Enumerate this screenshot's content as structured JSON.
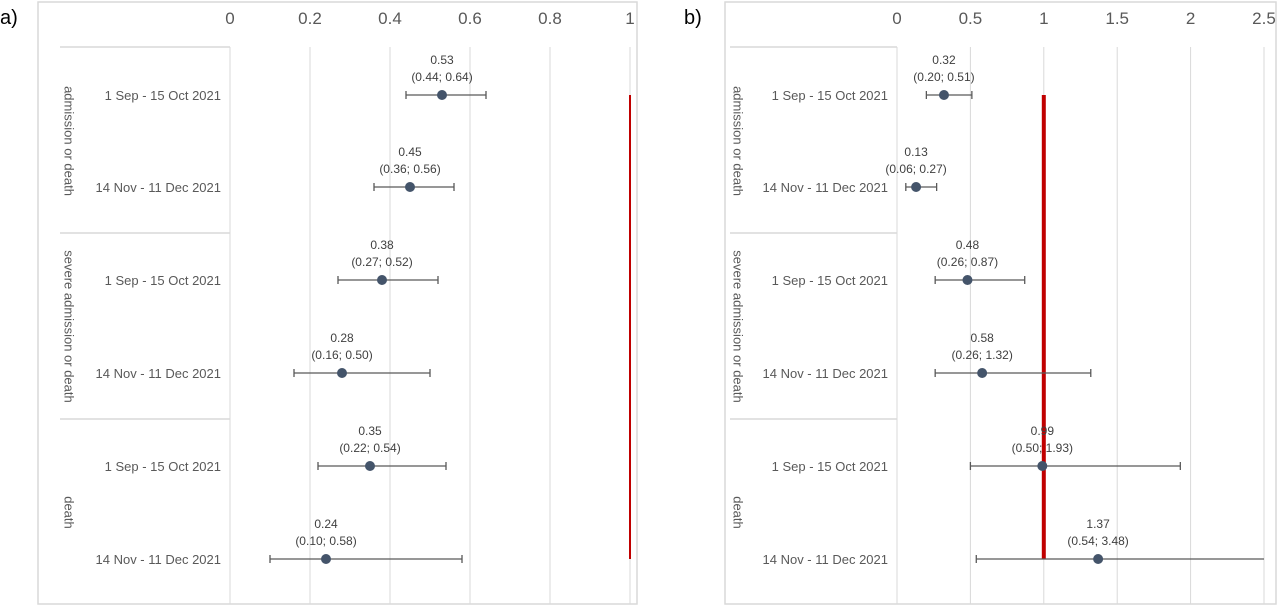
{
  "chart_data": [
    {
      "type": "scatter",
      "panel_label": "a)",
      "xlim": [
        0,
        1
      ],
      "xticks": [
        "0",
        "0.2",
        "0.4",
        "0.6",
        "0.8",
        "1"
      ],
      "xtick_values": [
        0,
        0.2,
        0.4,
        0.6,
        0.8,
        1
      ],
      "reference_line": 1,
      "reference_color": "#c00000",
      "grid": true,
      "groups": [
        "admission or death",
        "severe admission or death",
        "death"
      ],
      "rows": [
        {
          "group": 0,
          "label": "1 Sep - 15 Oct 2021",
          "value": 0.53,
          "low": 0.44,
          "high": 0.64,
          "value_text": "0.53",
          "ci_text": "(0.44; 0.64)"
        },
        {
          "group": 0,
          "label": "14 Nov - 11 Dec 2021",
          "value": 0.45,
          "low": 0.36,
          "high": 0.56,
          "value_text": "0.45",
          "ci_text": "(0.36; 0.56)"
        },
        {
          "group": 1,
          "label": "1 Sep - 15 Oct 2021",
          "value": 0.38,
          "low": 0.27,
          "high": 0.52,
          "value_text": "0.38",
          "ci_text": "(0.27; 0.52)"
        },
        {
          "group": 1,
          "label": "14 Nov - 11 Dec 2021",
          "value": 0.28,
          "low": 0.16,
          "high": 0.5,
          "value_text": "0.28",
          "ci_text": "(0.16; 0.50)"
        },
        {
          "group": 2,
          "label": "1 Sep - 15 Oct 2021",
          "value": 0.35,
          "low": 0.22,
          "high": 0.54,
          "value_text": "0.35",
          "ci_text": "(0.22; 0.54)"
        },
        {
          "group": 2,
          "label": "14 Nov - 11 Dec 2021",
          "value": 0.24,
          "low": 0.1,
          "high": 0.58,
          "value_text": "0.24",
          "ci_text": "(0.10; 0.58)"
        }
      ]
    },
    {
      "type": "scatter",
      "panel_label": "b)",
      "xlim": [
        0,
        2.5
      ],
      "xticks": [
        "0",
        "0.5",
        "1",
        "1.5",
        "2",
        "2.5"
      ],
      "xtick_values": [
        0,
        0.5,
        1,
        1.5,
        2,
        2.5
      ],
      "reference_line": 1,
      "reference_color": "#c00000",
      "grid": true,
      "groups": [
        "admission or death",
        "severe admission or death",
        "death"
      ],
      "rows": [
        {
          "group": 0,
          "label": "1 Sep - 15 Oct 2021",
          "value": 0.32,
          "low": 0.2,
          "high": 0.51,
          "value_text": "0.32",
          "ci_text": "(0.20; 0.51)"
        },
        {
          "group": 0,
          "label": "14 Nov - 11 Dec 2021",
          "value": 0.13,
          "low": 0.06,
          "high": 0.27,
          "value_text": "0.13",
          "ci_text": "(0.06; 0.27)"
        },
        {
          "group": 1,
          "label": "1 Sep - 15 Oct 2021",
          "value": 0.48,
          "low": 0.26,
          "high": 0.87,
          "value_text": "0.48",
          "ci_text": "(0.26; 0.87)"
        },
        {
          "group": 1,
          "label": "14 Nov - 11 Dec 2021",
          "value": 0.58,
          "low": 0.26,
          "high": 1.32,
          "value_text": "0.58",
          "ci_text": "(0.26; 1.32)"
        },
        {
          "group": 2,
          "label": "1 Sep - 15 Oct 2021",
          "value": 0.99,
          "low": 0.5,
          "high": 1.93,
          "value_text": "0.99",
          "ci_text": "(0.50; 1.93)"
        },
        {
          "group": 2,
          "label": "14 Nov - 11 Dec 2021",
          "value": 1.37,
          "low": 0.54,
          "high": 3.48,
          "value_text": "1.37",
          "ci_text": "(0.54; 3.48)"
        }
      ]
    }
  ]
}
